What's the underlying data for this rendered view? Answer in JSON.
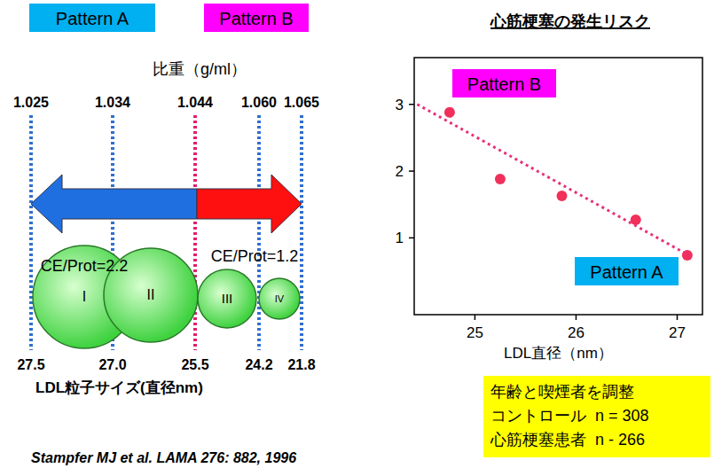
{
  "diagram": {
    "pattern_labels": [
      "Pattern A",
      "Pattern B"
    ],
    "density_title": "比重（g/ml）",
    "density_labels": [
      "1.025",
      "1.034",
      "1.044",
      "1.060",
      "1.065"
    ],
    "particles": [
      "I",
      "II",
      "III",
      "IV"
    ],
    "ce_prot": [
      "CE/Prot=2.2",
      "CE/Prot=1.2"
    ],
    "size_labels": [
      "27.5",
      "27.0",
      "25.5",
      "24.2",
      "21.8"
    ],
    "size_title": "LDL粒子サイズ(直径nm)",
    "citation": "Stampfer MJ et al. LAMA 276: 882, 1996"
  },
  "chart_data": {
    "type": "scatter",
    "title": "心筋梗塞の発生リスク",
    "x_label": "LDL直径（nm）",
    "xlim": [
      24.4,
      27.25
    ],
    "xticks": [
      25,
      26,
      27
    ],
    "ylim": [
      -0.15,
      3.7
    ],
    "yticks": [
      1,
      2,
      3
    ],
    "grid": false,
    "series": [
      {
        "type": "scatter",
        "marker": "circle",
        "color": "#f0305a",
        "x": [
          24.75,
          25.25,
          25.86,
          26.59,
          27.1
        ],
        "values": [
          2.88,
          1.88,
          1.63,
          1.27,
          0.74
        ]
      },
      {
        "type": "line",
        "line_style": "dotted",
        "color": "#e8307a",
        "x": [
          24.43,
          27.15
        ],
        "values": [
          3.0,
          0.71
        ]
      }
    ],
    "annotations": [
      "Pattern B",
      "Pattern A"
    ],
    "note": [
      "年齢と喫煙者を調整",
      "コントロール  n = 308",
      "心筋梗塞患者  n - 266"
    ]
  }
}
